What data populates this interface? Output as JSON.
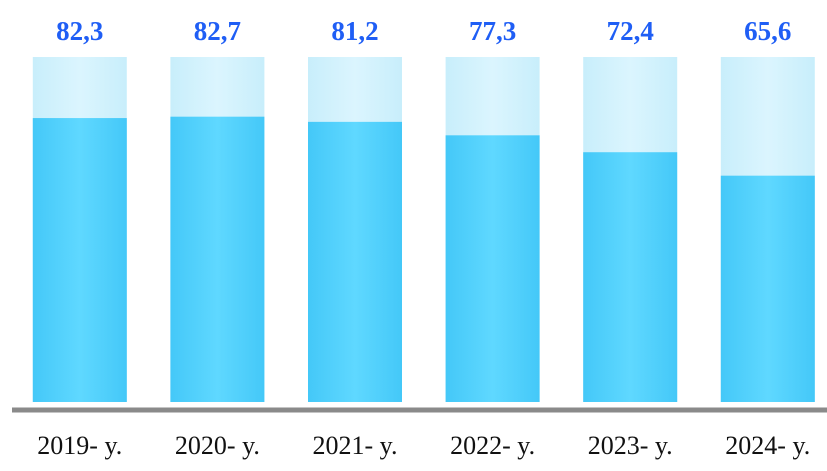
{
  "chart_data": {
    "type": "bar",
    "categories": [
      "2019- y.",
      "2020- y.",
      "2021- y.",
      "2022- y.",
      "2023- y.",
      "2024- y."
    ],
    "values": [
      82.3,
      82.7,
      81.2,
      77.3,
      72.4,
      65.6
    ],
    "value_labels": [
      "82,3",
      "82,7",
      "81,2",
      "77,3",
      "72,4",
      "65,6"
    ],
    "color": "#4fd0ff",
    "ylim": [
      0,
      100
    ]
  }
}
